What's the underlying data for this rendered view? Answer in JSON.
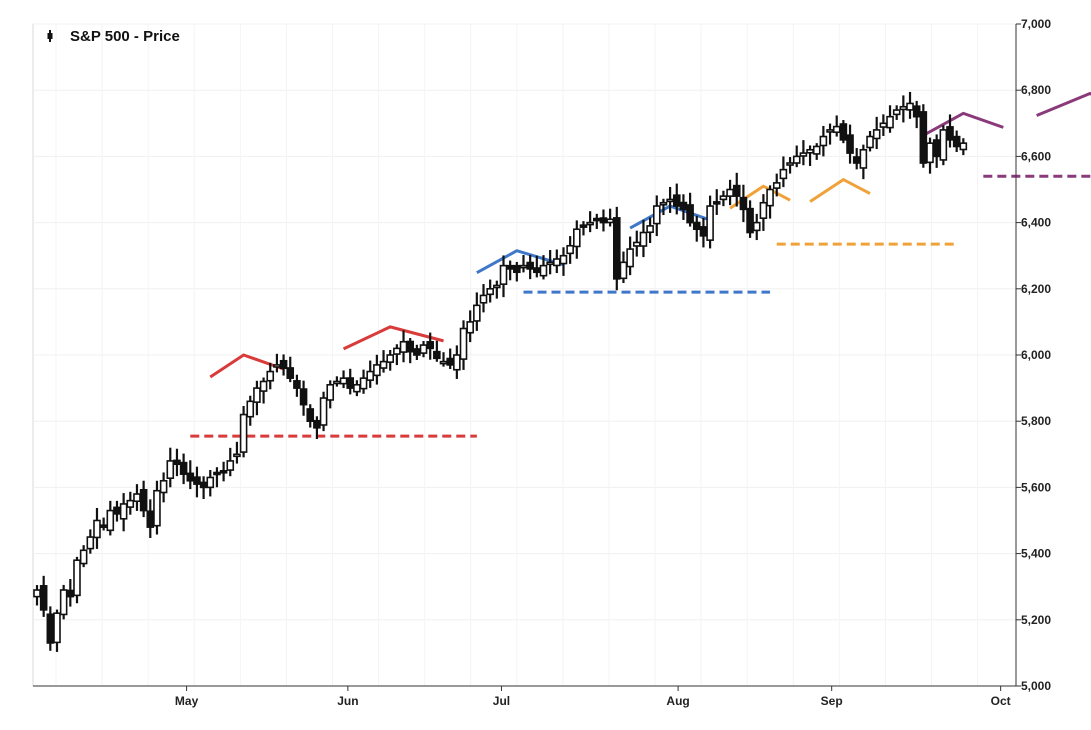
{
  "legend": {
    "label": "S&P 500 - Price"
  },
  "chart_data": {
    "type": "candlestick",
    "title": "",
    "series_name": "S&P 500 - Price",
    "ylim": [
      5000,
      7000
    ],
    "y_ticks": [
      5000,
      5200,
      5400,
      5600,
      5800,
      6000,
      6200,
      6400,
      6600,
      6800,
      7000
    ],
    "y_tick_labels": [
      "5,000",
      "5,200",
      "5,400",
      "5,600",
      "5,800",
      "6,000",
      "6,200",
      "6,400",
      "6,600",
      "6,800",
      "7,000"
    ],
    "x_ticks": [
      {
        "label": "May",
        "day": 20
      },
      {
        "label": "Jun",
        "day": 41
      },
      {
        "label": "Jul",
        "day": 61
      },
      {
        "label": "Aug",
        "day": 84
      },
      {
        "label": "Sep",
        "day": 104
      },
      {
        "label": "Oct",
        "day": 126
      }
    ],
    "x_range": [
      0,
      128
    ],
    "grid": true,
    "legend_position": "top-left",
    "closes": [
      5290,
      5230,
      5130,
      5220,
      5290,
      5270,
      5380,
      5410,
      5450,
      5500,
      5480,
      5530,
      5520,
      5550,
      5560,
      5580,
      5530,
      5480,
      5590,
      5620,
      5680,
      5670,
      5640,
      5620,
      5610,
      5600,
      5630,
      5640,
      5650,
      5680,
      5700,
      5820,
      5860,
      5900,
      5920,
      5950,
      5970,
      5960,
      5930,
      5900,
      5850,
      5800,
      5780,
      5870,
      5910,
      5920,
      5930,
      5900,
      5910,
      5930,
      5950,
      5970,
      5980,
      6000,
      6020,
      6040,
      6010,
      6000,
      6030,
      6020,
      5990,
      5980,
      5970,
      6000,
      6080,
      6100,
      6150,
      6180,
      6200,
      6210,
      6270,
      6260,
      6250,
      6270,
      6260,
      6250,
      6270,
      6280,
      6290,
      6300,
      6330,
      6380,
      6390,
      6400,
      6410,
      6400,
      6410,
      6230,
      6280,
      6320,
      6340,
      6370,
      6390,
      6450,
      6460,
      6470,
      6450,
      6440,
      6400,
      6380,
      6360,
      6450,
      6460,
      6480,
      6500,
      6480,
      6440,
      6370,
      6400,
      6460,
      6500,
      6520,
      6560,
      6580,
      6600,
      6610,
      6620,
      6630,
      6660,
      6680,
      6690,
      6650,
      6610,
      6580,
      6620,
      6660,
      6680,
      6700,
      6720,
      6740,
      6750,
      6760,
      6720,
      6580,
      6640,
      6600,
      6680,
      6650,
      6630,
      6640
    ]
  },
  "annotations": {
    "support_lines": [
      {
        "color": "#d93a3a",
        "level": 5755,
        "from_day": 23,
        "to_day": 66
      },
      {
        "color": "#3f77c9",
        "level": 6190,
        "from_day": 73,
        "to_day": 110
      },
      {
        "color": "#f0a23a",
        "level": 6335,
        "from_day": 111,
        "to_day": 138
      },
      {
        "color": "#8a3a7a",
        "level": 6540,
        "from_day": 142,
        "to_day": 183
      }
    ],
    "top_markers": [
      {
        "color": "#d93a3a",
        "peak": 6000,
        "start_day": 26,
        "peak_day": 31,
        "end_day": 37
      },
      {
        "color": "#d93a3a",
        "peak": 6085,
        "start_day": 46,
        "peak_day": 53,
        "end_day": 61
      },
      {
        "color": "#3f77c9",
        "peak": 6315,
        "start_day": 66,
        "peak_day": 72,
        "end_day": 79
      },
      {
        "color": "#3f77c9",
        "peak": 6450,
        "start_day": 89,
        "peak_day": 95,
        "end_day": 101
      },
      {
        "color": "#f0a23a",
        "peak": 6510,
        "start_day": 104,
        "peak_day": 109,
        "end_day": 113
      },
      {
        "color": "#f0a23a",
        "peak": 6530,
        "start_day": 116,
        "peak_day": 121,
        "end_day": 125
      },
      {
        "color": "#8a3a7a",
        "peak": 6730,
        "start_day": 133,
        "peak_day": 139,
        "end_day": 145
      },
      {
        "color": "#8a3a7a",
        "peak": 6790,
        "start_day": 150,
        "peak_day": 158,
        "end_day": 163
      }
    ]
  }
}
